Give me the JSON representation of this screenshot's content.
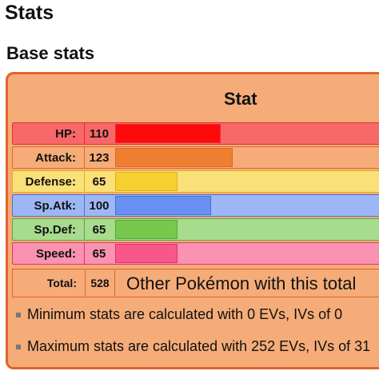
{
  "page": {
    "title": "Stats",
    "section_title": "Base stats"
  },
  "table": {
    "header": "Stat",
    "rows": [
      {
        "label": "HP:",
        "value": "110",
        "fraction": 0.44,
        "bg": "#f86868",
        "fill": "#fd0b0b",
        "border": "#e03030"
      },
      {
        "label": "Attack:",
        "value": "123",
        "fraction": 0.49,
        "bg": "#f5ac78",
        "fill": "#ee7f30",
        "border": "#e0642a"
      },
      {
        "label": "Defense:",
        "value": "65",
        "fraction": 0.26,
        "bg": "#fae078",
        "fill": "#f5d030",
        "border": "#e0b020"
      },
      {
        "label": "Sp.Atk:",
        "value": "100",
        "fraction": 0.4,
        "bg": "#9db7f5",
        "fill": "#6890f0",
        "border": "#4a70d0"
      },
      {
        "label": "Sp.Def:",
        "value": "65",
        "fraction": 0.26,
        "bg": "#a7db8d",
        "fill": "#78c850",
        "border": "#58a838"
      },
      {
        "label": "Speed:",
        "value": "65",
        "fraction": 0.26,
        "bg": "#fa92b2",
        "fill": "#f85888",
        "border": "#d83868"
      }
    ],
    "total_label": "Total:",
    "total_value": "528",
    "other_link": "Other Pokémon with this total"
  },
  "notes": [
    "Minimum stats are calculated with 0 EVs, IVs of 0",
    "Maximum stats are calculated with 252 EVs, IVs of 31"
  ]
}
